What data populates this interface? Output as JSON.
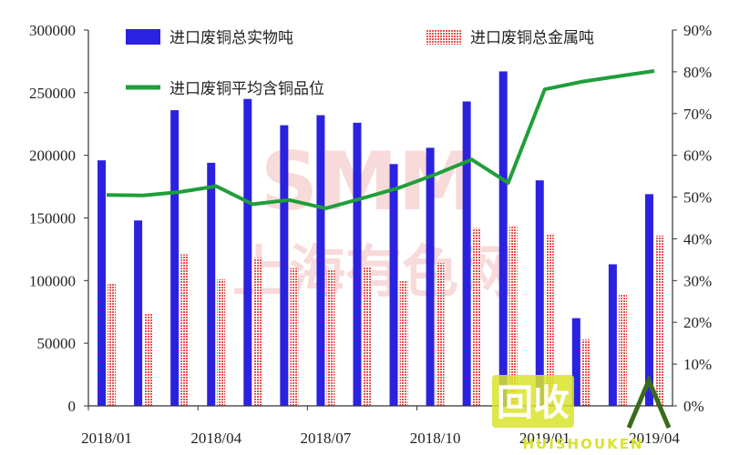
{
  "chart_data": {
    "type": "bar",
    "categories": [
      "2018/01",
      "2018/02",
      "2018/03",
      "2018/04",
      "2018/05",
      "2018/06",
      "2018/07",
      "2018/08",
      "2018/09",
      "2018/10",
      "2018/11",
      "2018/12",
      "2019/01",
      "2019/02",
      "2019/03",
      "2019/04"
    ],
    "x_tick_labels": [
      "2018/01",
      "2018/04",
      "2018/07",
      "2018/10",
      "2019/01",
      "2019/04"
    ],
    "series": [
      {
        "name": "进口废铜总实物吨",
        "axis": "left",
        "type": "bar",
        "color": "#2b22e0",
        "values": [
          196000,
          148000,
          236000,
          194000,
          245000,
          224000,
          232000,
          226000,
          193000,
          206000,
          243000,
          267000,
          180000,
          70000,
          113000,
          169000
        ]
      },
      {
        "name": "进口废铜总金属吨",
        "axis": "left",
        "type": "bar",
        "color": "#ef4f4f",
        "values": [
          98000,
          74000,
          121000,
          101000,
          118000,
          110000,
          109000,
          111000,
          100000,
          114000,
          142000,
          143000,
          137000,
          53000,
          89000,
          136000
        ]
      },
      {
        "name": "进口废铜平均含铜品位",
        "axis": "right",
        "type": "line",
        "color": "#1f9e3a",
        "values": [
          50.5,
          50.4,
          51.2,
          52.6,
          48.3,
          49.3,
          47.3,
          49.7,
          52.2,
          55.4,
          59.0,
          53.4,
          75.8,
          77.6,
          78.9,
          80.2
        ]
      }
    ],
    "y_left": {
      "min": 0,
      "max": 300000,
      "ticks": [
        "0",
        "50000",
        "100000",
        "150000",
        "200000",
        "250000",
        "300000"
      ]
    },
    "y_right": {
      "min": 0,
      "max": 90,
      "ticks": [
        "0%",
        "10%",
        "20%",
        "30%",
        "40%",
        "50%",
        "60%",
        "70%",
        "80%",
        "90%"
      ]
    },
    "legend_placement": "top",
    "grid": false
  },
  "watermarks": {
    "center_logo": "SMM",
    "center_text": "上海有色网",
    "corner_logo": "回收",
    "corner_text": "HUISHOUKEN"
  }
}
